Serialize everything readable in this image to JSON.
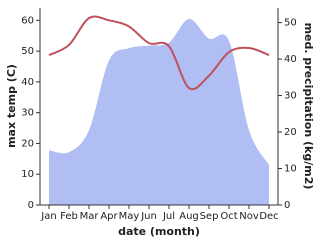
{
  "chart_data": {
    "type": "line-area",
    "x_label": "date (month)",
    "y_label": "max temp (C)",
    "y2_label": "med. precipitation (kg/m2)",
    "categories": [
      "Jan",
      "Feb",
      "Mar",
      "Apr",
      "May",
      "Jun",
      "Jul",
      "Aug",
      "Sep",
      "Oct",
      "Nov",
      "Dec"
    ],
    "ylim": [
      0,
      64
    ],
    "yticks": [
      0,
      10,
      20,
      30,
      40,
      50,
      60
    ],
    "y2lim": [
      0,
      54
    ],
    "y2ticks": [
      0,
      10,
      20,
      30,
      40,
      50
    ],
    "series": [
      {
        "name": "med. precipitation",
        "color": "#b0bef4",
        "axis": "y2",
        "kind": "area",
        "values": [
          15,
          14.5,
          20.5,
          39.6,
          43,
          43.7,
          44.5,
          51,
          45.6,
          45,
          20.5,
          11
        ]
      },
      {
        "name": "max temp",
        "color": "#c0505a",
        "axis": "y",
        "kind": "line",
        "values": [
          48.7,
          52,
          60.7,
          60,
          58,
          52.6,
          51.6,
          38,
          42,
          49.7,
          51,
          48.7
        ]
      }
    ]
  }
}
